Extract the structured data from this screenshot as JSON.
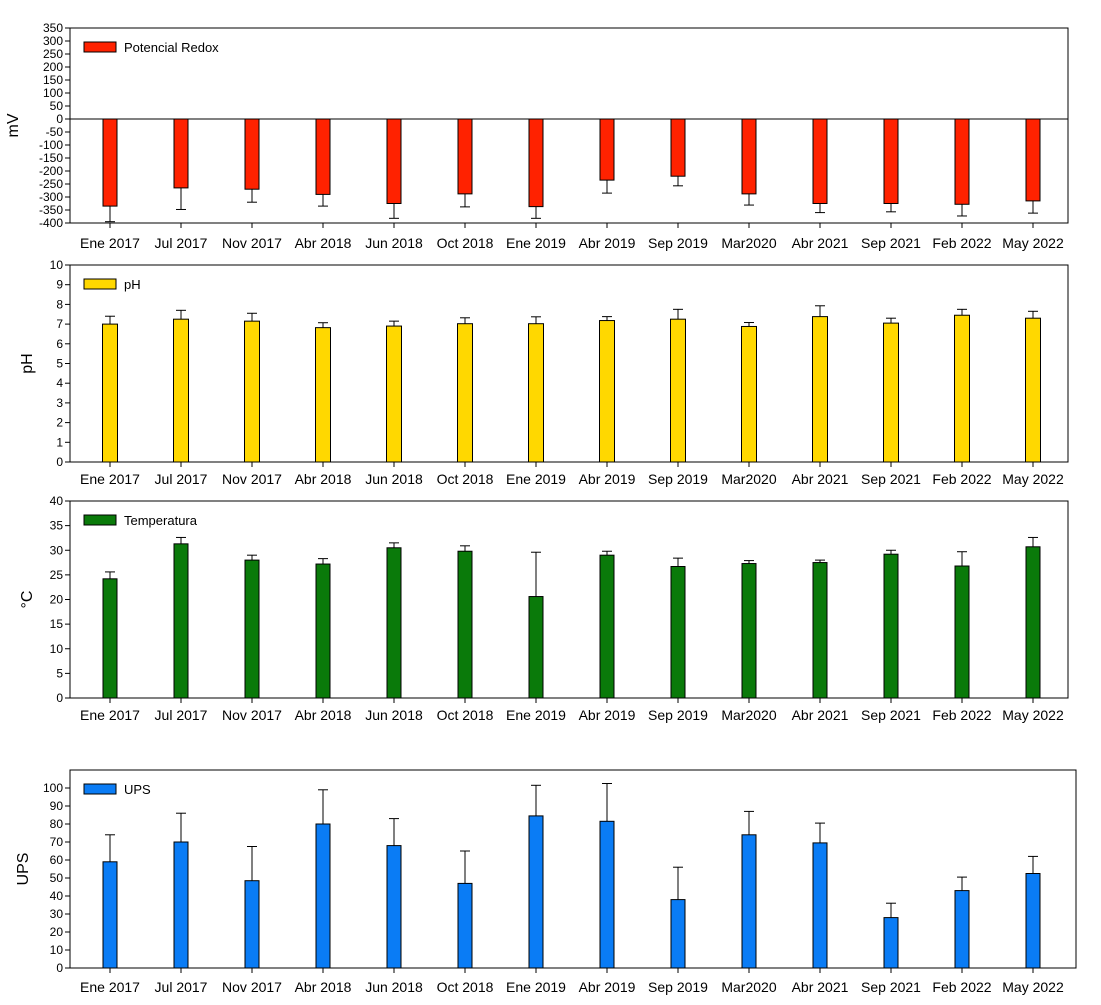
{
  "chart_data": [
    {
      "type": "bar",
      "panel": "redox",
      "ylabel": "mV",
      "ylim": [
        -400,
        350
      ],
      "yticks": [
        350,
        300,
        250,
        200,
        150,
        100,
        50,
        0,
        -50,
        -100,
        -150,
        -200,
        -250,
        -300,
        -350,
        -400
      ],
      "legend": "Potencial Redox",
      "legend_position": "top-left",
      "color": "#ff2200",
      "categories": [
        "Ene 2017",
        "Jul 2017",
        "Nov 2017",
        "Abr 2018",
        "Jun 2018",
        "Oct 2018",
        "Ene 2019",
        "Abr 2019",
        "Sep 2019",
        "Mar2020",
        "Abr 2021",
        "Sep 2021",
        "Feb 2022",
        "May 2022"
      ],
      "values": [
        -335,
        -265,
        -270,
        -290,
        -325,
        -288,
        -337,
        -235,
        -220,
        -288,
        -325,
        -325,
        -328,
        -315
      ],
      "errors": [
        60,
        83,
        50,
        45,
        57,
        50,
        45,
        50,
        37,
        43,
        35,
        32,
        45,
        47
      ]
    },
    {
      "type": "bar",
      "panel": "ph",
      "ylabel": "pH",
      "ylim": [
        0,
        10
      ],
      "yticks": [
        0,
        1,
        2,
        3,
        4,
        5,
        6,
        7,
        8,
        9,
        10
      ],
      "legend": "pH",
      "legend_position": "top-left",
      "color": "#ffd800",
      "categories": [
        "Ene 2017",
        "Jul 2017",
        "Nov 2017",
        "Abr 2018",
        "Jun 2018",
        "Oct 2018",
        "Ene 2019",
        "Abr 2019",
        "Sep 2019",
        "Mar2020",
        "Abr 2021",
        "Sep 2021",
        "Feb 2022",
        "May 2022"
      ],
      "values": [
        7.0,
        7.25,
        7.15,
        6.82,
        6.9,
        7.02,
        7.02,
        7.18,
        7.25,
        6.88,
        7.38,
        7.05,
        7.45,
        7.3
      ],
      "errors": [
        0.4,
        0.45,
        0.4,
        0.25,
        0.25,
        0.3,
        0.35,
        0.2,
        0.5,
        0.2,
        0.55,
        0.25,
        0.3,
        0.35
      ]
    },
    {
      "type": "bar",
      "panel": "temperature",
      "ylabel": "°C",
      "ylim": [
        0,
        40
      ],
      "yticks": [
        0,
        5,
        10,
        15,
        20,
        25,
        30,
        35,
        40
      ],
      "legend": "Temperatura",
      "legend_position": "top-left",
      "color": "#0a7a0a",
      "categories": [
        "Ene 2017",
        "Jul 2017",
        "Nov 2017",
        "Abr 2018",
        "Jun 2018",
        "Oct 2018",
        "Ene 2019",
        "Abr 2019",
        "Sep 2019",
        "Mar2020",
        "Abr 2021",
        "Sep 2021",
        "Feb 2022",
        "May 2022"
      ],
      "values": [
        24.2,
        31.3,
        28.0,
        27.2,
        30.5,
        29.8,
        20.6,
        29.0,
        26.7,
        27.3,
        27.5,
        29.2,
        26.8,
        30.7
      ],
      "errors": [
        1.4,
        1.3,
        1.0,
        1.1,
        1.0,
        1.1,
        9.0,
        0.8,
        1.7,
        0.6,
        0.5,
        0.8,
        2.9,
        1.9
      ]
    },
    {
      "type": "bar",
      "panel": "ups",
      "ylabel": "UPS",
      "ylim": [
        0,
        110
      ],
      "yticks": [
        0,
        10,
        20,
        30,
        40,
        50,
        60,
        70,
        80,
        90,
        100
      ],
      "legend": "UPS",
      "legend_position": "top-left",
      "color": "#0a7cf5",
      "categories": [
        "Ene 2017",
        "Jul 2017",
        "Nov 2017",
        "Abr 2018",
        "Jun 2018",
        "Oct 2018",
        "Ene 2019",
        "Abr 2019",
        "Sep 2019",
        "Mar2020",
        "Abr 2021",
        "Sep 2021",
        "Feb 2022",
        "May 2022"
      ],
      "values": [
        59,
        70,
        48.5,
        80,
        68,
        47,
        84.5,
        81.5,
        38,
        74,
        69.5,
        28,
        43,
        52.5
      ],
      "errors": [
        15,
        16,
        19,
        19,
        15,
        18,
        17,
        21,
        18,
        13,
        11,
        8,
        7.5,
        9.5
      ]
    }
  ]
}
